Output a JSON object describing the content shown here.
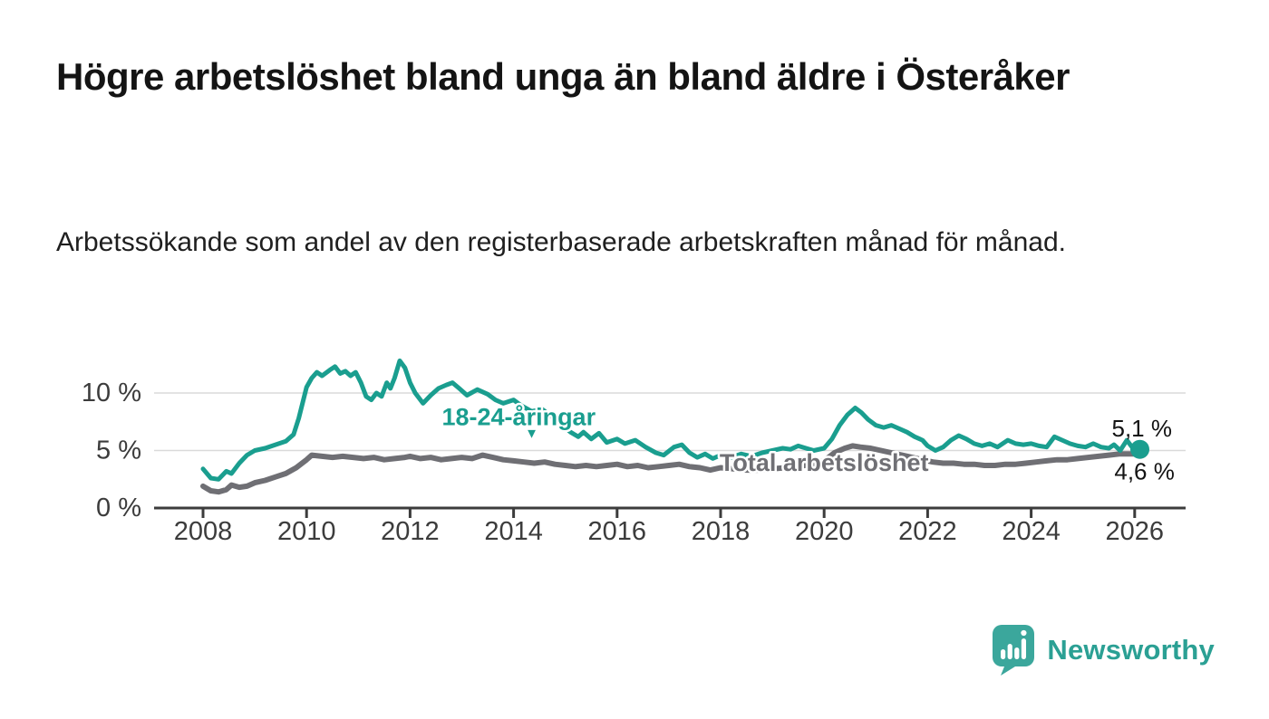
{
  "header": {
    "title": "Högre arbetslöshet bland unga än bland äldre i Österåker",
    "subtitle": "Arbetssökande som andel av den registerbaserade arbetskraften månad för månad."
  },
  "chart_data": {
    "type": "line",
    "unit": "%",
    "grid": "horizontal-only",
    "legend_position": "inline-labels",
    "x_domain": [
      2007.05,
      2027.15
    ],
    "y_domain": [
      0,
      13.5
    ],
    "x_ticks": [
      2008,
      2010,
      2012,
      2014,
      2016,
      2018,
      2020,
      2022,
      2024,
      2026
    ],
    "y_ticks": [
      {
        "value": 0,
        "label": "0 %"
      },
      {
        "value": 5,
        "label": "5 %"
      },
      {
        "value": 10,
        "label": "10 %"
      }
    ],
    "series": [
      {
        "id": "total",
        "name": "Total arbetslöshet",
        "color": "#6F6F74",
        "label_color": "#707075",
        "end_label": "4,6 %",
        "end_marker": false,
        "points": [
          [
            2008.0,
            1.9
          ],
          [
            2008.15,
            1.5
          ],
          [
            2008.3,
            1.4
          ],
          [
            2008.45,
            1.6
          ],
          [
            2008.55,
            2.0
          ],
          [
            2008.7,
            1.8
          ],
          [
            2008.85,
            1.9
          ],
          [
            2009.0,
            2.2
          ],
          [
            2009.2,
            2.4
          ],
          [
            2009.4,
            2.7
          ],
          [
            2009.6,
            3.0
          ],
          [
            2009.8,
            3.5
          ],
          [
            2010.0,
            4.2
          ],
          [
            2010.1,
            4.6
          ],
          [
            2010.3,
            4.5
          ],
          [
            2010.5,
            4.4
          ],
          [
            2010.7,
            4.5
          ],
          [
            2010.9,
            4.4
          ],
          [
            2011.1,
            4.3
          ],
          [
            2011.3,
            4.4
          ],
          [
            2011.5,
            4.2
          ],
          [
            2011.7,
            4.3
          ],
          [
            2011.9,
            4.4
          ],
          [
            2012.0,
            4.5
          ],
          [
            2012.2,
            4.3
          ],
          [
            2012.4,
            4.4
          ],
          [
            2012.6,
            4.2
          ],
          [
            2012.8,
            4.3
          ],
          [
            2013.0,
            4.4
          ],
          [
            2013.2,
            4.3
          ],
          [
            2013.4,
            4.6
          ],
          [
            2013.6,
            4.4
          ],
          [
            2013.8,
            4.2
          ],
          [
            2014.0,
            4.1
          ],
          [
            2014.2,
            4.0
          ],
          [
            2014.4,
            3.9
          ],
          [
            2014.6,
            4.0
          ],
          [
            2014.8,
            3.8
          ],
          [
            2015.0,
            3.7
          ],
          [
            2015.2,
            3.6
          ],
          [
            2015.4,
            3.7
          ],
          [
            2015.6,
            3.6
          ],
          [
            2015.8,
            3.7
          ],
          [
            2016.0,
            3.8
          ],
          [
            2016.2,
            3.6
          ],
          [
            2016.4,
            3.7
          ],
          [
            2016.6,
            3.5
          ],
          [
            2016.8,
            3.6
          ],
          [
            2017.0,
            3.7
          ],
          [
            2017.2,
            3.8
          ],
          [
            2017.4,
            3.6
          ],
          [
            2017.6,
            3.5
          ],
          [
            2017.8,
            3.3
          ],
          [
            2018.0,
            3.5
          ],
          [
            2018.25,
            3.4
          ],
          [
            2018.5,
            3.3
          ],
          [
            2018.75,
            3.3
          ],
          [
            2019.0,
            3.4
          ],
          [
            2019.25,
            3.5
          ],
          [
            2019.5,
            3.6
          ],
          [
            2019.75,
            3.8
          ],
          [
            2020.0,
            4.1
          ],
          [
            2020.2,
            4.8
          ],
          [
            2020.4,
            5.2
          ],
          [
            2020.55,
            5.4
          ],
          [
            2020.7,
            5.3
          ],
          [
            2020.9,
            5.2
          ],
          [
            2021.1,
            5.0
          ],
          [
            2021.3,
            4.8
          ],
          [
            2021.5,
            4.6
          ],
          [
            2021.7,
            4.4
          ],
          [
            2021.9,
            4.2
          ],
          [
            2022.1,
            4.0
          ],
          [
            2022.3,
            3.9
          ],
          [
            2022.5,
            3.9
          ],
          [
            2022.7,
            3.8
          ],
          [
            2022.9,
            3.8
          ],
          [
            2023.1,
            3.7
          ],
          [
            2023.3,
            3.7
          ],
          [
            2023.5,
            3.8
          ],
          [
            2023.7,
            3.8
          ],
          [
            2023.9,
            3.9
          ],
          [
            2024.1,
            4.0
          ],
          [
            2024.3,
            4.1
          ],
          [
            2024.5,
            4.2
          ],
          [
            2024.7,
            4.2
          ],
          [
            2024.9,
            4.3
          ],
          [
            2025.1,
            4.4
          ],
          [
            2025.3,
            4.5
          ],
          [
            2025.5,
            4.6
          ],
          [
            2025.7,
            4.7
          ],
          [
            2025.85,
            4.7
          ],
          [
            2026.0,
            4.7
          ],
          [
            2026.15,
            4.6
          ]
        ]
      },
      {
        "id": "youth",
        "name": "18-24-åringar",
        "color": "#1A9E8F",
        "label_color": "#1A9E8F",
        "end_label": "5,1 %",
        "end_marker": true,
        "points": [
          [
            2008.0,
            3.4
          ],
          [
            2008.15,
            2.6
          ],
          [
            2008.3,
            2.5
          ],
          [
            2008.45,
            3.2
          ],
          [
            2008.55,
            3.0
          ],
          [
            2008.7,
            3.9
          ],
          [
            2008.85,
            4.6
          ],
          [
            2009.0,
            5.0
          ],
          [
            2009.2,
            5.2
          ],
          [
            2009.4,
            5.5
          ],
          [
            2009.6,
            5.8
          ],
          [
            2009.75,
            6.4
          ],
          [
            2009.85,
            7.8
          ],
          [
            2010.0,
            10.5
          ],
          [
            2010.1,
            11.3
          ],
          [
            2010.2,
            11.8
          ],
          [
            2010.3,
            11.5
          ],
          [
            2010.45,
            12.0
          ],
          [
            2010.55,
            12.3
          ],
          [
            2010.65,
            11.7
          ],
          [
            2010.75,
            11.9
          ],
          [
            2010.85,
            11.5
          ],
          [
            2010.95,
            11.8
          ],
          [
            2011.05,
            10.9
          ],
          [
            2011.15,
            9.7
          ],
          [
            2011.25,
            9.4
          ],
          [
            2011.35,
            10.0
          ],
          [
            2011.45,
            9.7
          ],
          [
            2011.55,
            10.9
          ],
          [
            2011.62,
            10.4
          ],
          [
            2011.7,
            11.3
          ],
          [
            2011.8,
            12.8
          ],
          [
            2011.9,
            12.2
          ],
          [
            2012.0,
            10.9
          ],
          [
            2012.1,
            10.0
          ],
          [
            2012.25,
            9.1
          ],
          [
            2012.4,
            9.8
          ],
          [
            2012.55,
            10.4
          ],
          [
            2012.7,
            10.7
          ],
          [
            2012.82,
            10.9
          ],
          [
            2012.95,
            10.4
          ],
          [
            2013.1,
            9.8
          ],
          [
            2013.3,
            10.3
          ],
          [
            2013.5,
            9.9
          ],
          [
            2013.65,
            9.4
          ],
          [
            2013.8,
            9.1
          ],
          [
            2014.0,
            9.4
          ],
          [
            2014.15,
            8.9
          ],
          [
            2014.35,
            8.4
          ],
          [
            2014.55,
            8.6
          ],
          [
            2014.75,
            7.9
          ],
          [
            2014.9,
            7.3
          ],
          [
            2015.1,
            6.6
          ],
          [
            2015.25,
            6.2
          ],
          [
            2015.35,
            6.6
          ],
          [
            2015.5,
            6.0
          ],
          [
            2015.65,
            6.5
          ],
          [
            2015.8,
            5.7
          ],
          [
            2016.0,
            6.0
          ],
          [
            2016.15,
            5.6
          ],
          [
            2016.35,
            5.9
          ],
          [
            2016.55,
            5.3
          ],
          [
            2016.75,
            4.8
          ],
          [
            2016.9,
            4.6
          ],
          [
            2017.1,
            5.3
          ],
          [
            2017.25,
            5.5
          ],
          [
            2017.4,
            4.8
          ],
          [
            2017.55,
            4.4
          ],
          [
            2017.7,
            4.7
          ],
          [
            2017.85,
            4.3
          ],
          [
            2018.0,
            4.6
          ],
          [
            2018.2,
            4.4
          ],
          [
            2018.4,
            4.7
          ],
          [
            2018.6,
            4.5
          ],
          [
            2018.8,
            4.8
          ],
          [
            2019.0,
            5.0
          ],
          [
            2019.2,
            5.2
          ],
          [
            2019.35,
            5.1
          ],
          [
            2019.5,
            5.4
          ],
          [
            2019.65,
            5.2
          ],
          [
            2019.8,
            5.0
          ],
          [
            2020.0,
            5.2
          ],
          [
            2020.15,
            6.0
          ],
          [
            2020.3,
            7.2
          ],
          [
            2020.45,
            8.1
          ],
          [
            2020.6,
            8.7
          ],
          [
            2020.72,
            8.3
          ],
          [
            2020.85,
            7.7
          ],
          [
            2021.0,
            7.2
          ],
          [
            2021.15,
            7.0
          ],
          [
            2021.3,
            7.2
          ],
          [
            2021.45,
            6.9
          ],
          [
            2021.6,
            6.6
          ],
          [
            2021.75,
            6.2
          ],
          [
            2021.9,
            5.9
          ],
          [
            2022.0,
            5.4
          ],
          [
            2022.15,
            5.0
          ],
          [
            2022.3,
            5.3
          ],
          [
            2022.45,
            5.9
          ],
          [
            2022.6,
            6.3
          ],
          [
            2022.75,
            6.0
          ],
          [
            2022.9,
            5.6
          ],
          [
            2023.05,
            5.4
          ],
          [
            2023.2,
            5.6
          ],
          [
            2023.35,
            5.3
          ],
          [
            2023.55,
            5.9
          ],
          [
            2023.7,
            5.6
          ],
          [
            2023.85,
            5.5
          ],
          [
            2024.0,
            5.6
          ],
          [
            2024.15,
            5.4
          ],
          [
            2024.3,
            5.3
          ],
          [
            2024.45,
            6.2
          ],
          [
            2024.6,
            5.9
          ],
          [
            2024.75,
            5.6
          ],
          [
            2024.9,
            5.4
          ],
          [
            2025.05,
            5.3
          ],
          [
            2025.2,
            5.6
          ],
          [
            2025.35,
            5.3
          ],
          [
            2025.5,
            5.2
          ],
          [
            2025.6,
            5.5
          ],
          [
            2025.72,
            5.0
          ],
          [
            2025.85,
            5.9
          ],
          [
            2025.95,
            5.3
          ],
          [
            2026.05,
            5.4
          ],
          [
            2026.1,
            5.1
          ]
        ]
      }
    ],
    "annotations": {
      "youth_label": {
        "text": "18-24-åringar",
        "x": 2014.1,
        "y": 7.9,
        "marker": "▼",
        "marker_x": 2014.35,
        "marker_y": 6.45
      },
      "total_label": {
        "text": "Total arbetslöshet",
        "x": 2020.0,
        "y": 3.93
      }
    },
    "style": {
      "grid_color": "#DADADA",
      "axis_color": "#3C3C3C",
      "tick_label_color": "#3C3C3C",
      "end_label_color": "#141414"
    }
  },
  "footer": {
    "brand_name": "Newsworthy",
    "brand_text_color": "#2BA094",
    "brand_icon_color": "#3BA79C"
  }
}
